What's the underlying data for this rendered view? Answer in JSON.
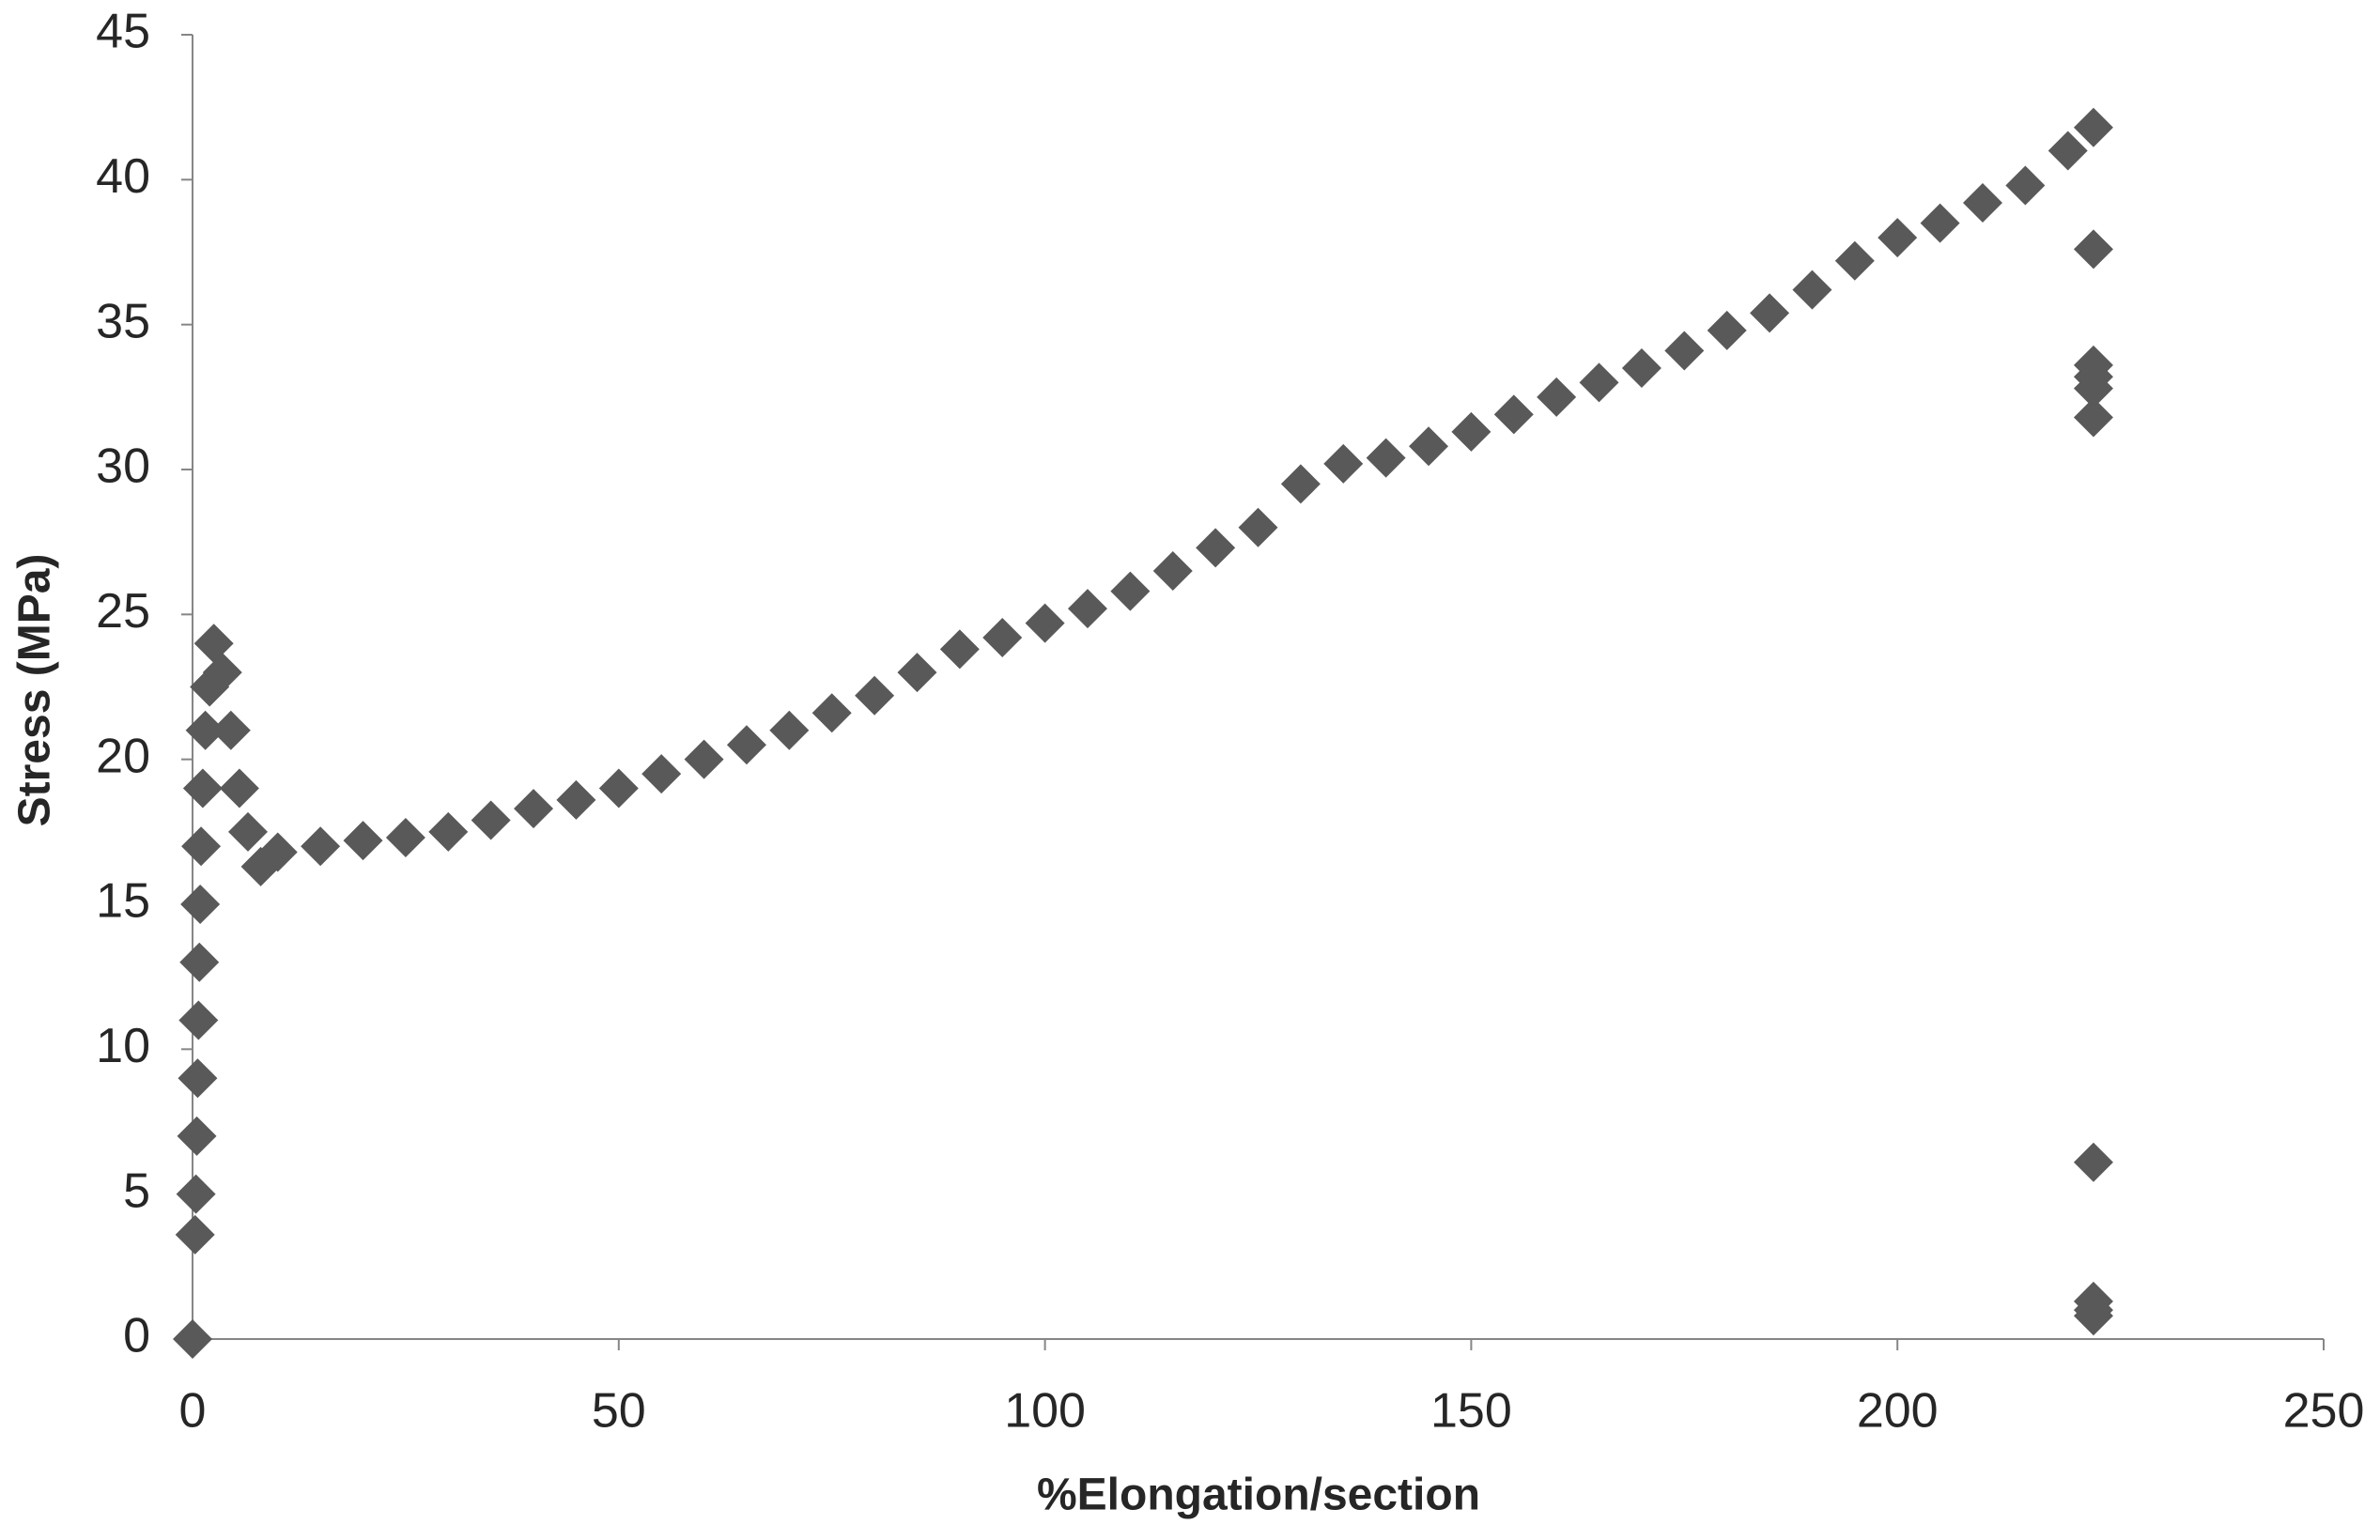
{
  "chart_data": {
    "type": "scatter",
    "x_label": "%Elongation/section",
    "y_label": "Stress (MPa)",
    "color": "#595959",
    "xlim": [
      0,
      250
    ],
    "xticks": [
      0,
      50,
      100,
      150,
      200,
      250
    ],
    "ylim": [
      0,
      45
    ],
    "yticks": [
      0,
      5,
      10,
      15,
      20,
      25,
      30,
      35,
      40,
      45
    ],
    "x": [
      0,
      0.3,
      0.4,
      0.5,
      0.6,
      0.7,
      0.8,
      0.9,
      1.0,
      1.2,
      1.5,
      2,
      2.5,
      3.5,
      4.5,
      5.5,
      6.5,
      8,
      10,
      15,
      20,
      25,
      30,
      35,
      40,
      45,
      50,
      55,
      60,
      65,
      70,
      75,
      80,
      85,
      90,
      95,
      100,
      105,
      110,
      115,
      120,
      125,
      130,
      135,
      140,
      145,
      150,
      155,
      160,
      165,
      170,
      175,
      180,
      185,
      190,
      195,
      200,
      205,
      210,
      215,
      220,
      223,
      223,
      223,
      223,
      223,
      223,
      223,
      223,
      223,
      223
    ],
    "values": [
      0,
      3.6,
      5,
      7,
      9,
      11,
      13,
      15,
      17,
      19,
      21,
      22.5,
      24,
      23,
      21,
      19,
      17.5,
      16.3,
      16.8,
      17.0,
      17.2,
      17.3,
      17.5,
      17.9,
      18.3,
      18.6,
      19.0,
      19.5,
      20.0,
      20.5,
      21.0,
      21.6,
      22.2,
      23.0,
      23.8,
      24.2,
      24.7,
      25.2,
      25.8,
      26.5,
      27.3,
      28.0,
      29.5,
      30.2,
      30.4,
      30.8,
      31.3,
      31.9,
      32.5,
      33.0,
      33.5,
      34.1,
      34.8,
      35.4,
      36.2,
      37.2,
      38.0,
      38.5,
      39.2,
      39.8,
      41.0,
      41.8,
      37.6,
      33.6,
      33.2,
      32.8,
      31.8,
      6.1,
      1.3,
      1.0,
      0.8
    ]
  }
}
